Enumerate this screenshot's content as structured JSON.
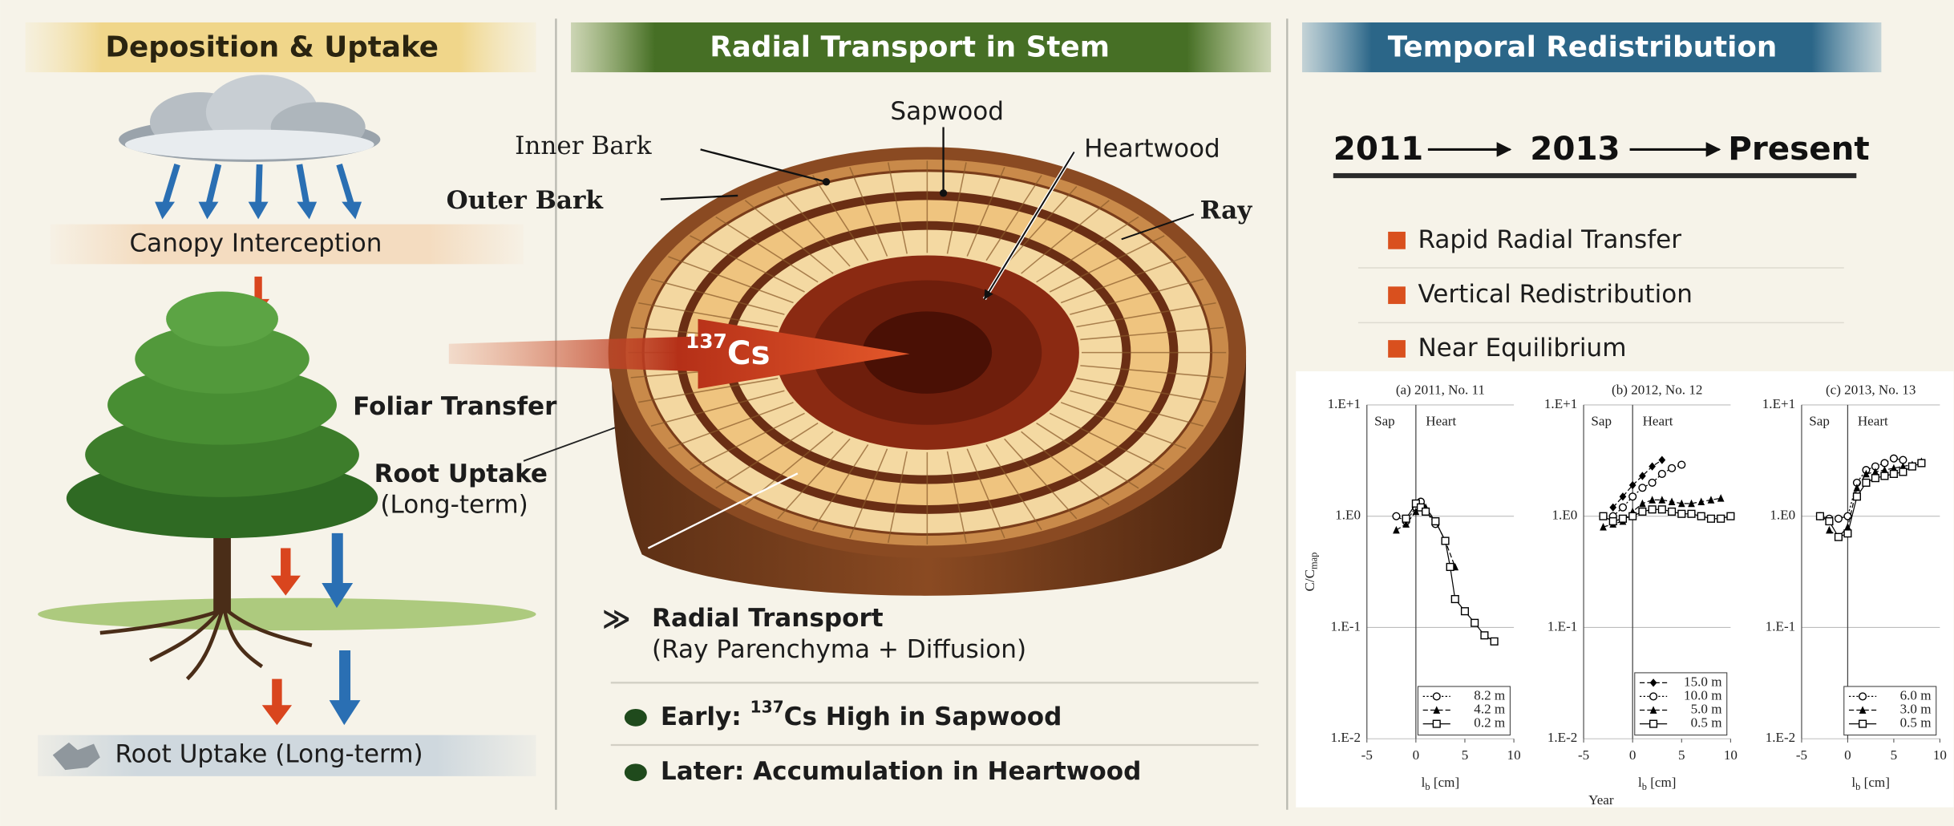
{
  "panels": [
    {
      "title": "Deposition & Uptake",
      "canopy": "Canopy Interception",
      "foliar": "Foliar Transfer",
      "root": "Root Uptake",
      "root_note": "(Long-term)",
      "bottom": "Root Uptake (Long-term)"
    },
    {
      "title": "Radial Transport in Stem",
      "sapwood": "Sapwood",
      "inner_bark": "Inner Bark",
      "outer_bark": "Outer Bark",
      "heartwood": "Heartwood",
      "ray": "Ray",
      "isotope_mass": "137",
      "isotope": "Cs",
      "transport": "Radial Transport",
      "transport_note": "(Ray Parenchyma + Diffusion)",
      "early": [
        "Early: ",
        "137",
        "Cs High in Sapwood"
      ],
      "later": "Later: Accumulation in Heartwood"
    },
    {
      "title": "Temporal Redistribution",
      "timeline": [
        "2011",
        "2013",
        "Present"
      ],
      "stages": [
        "Rapid Radial Transfer",
        "Vertical Redistribution",
        "Near Equilibrium"
      ],
      "axis_note": "Year"
    }
  ],
  "chart_data": [
    {
      "type": "line",
      "title": "(a) 2011, No. 11",
      "x_label": [
        "l",
        "b",
        " [cm]"
      ],
      "y_label": [
        "C/C",
        "map"
      ],
      "regions": [
        "Sap",
        "Heart"
      ],
      "divider_x": 0,
      "xlim": [
        -5,
        10
      ],
      "xticks": [
        -5,
        0,
        5,
        10
      ],
      "ylim": [
        0.01,
        10
      ],
      "log_y": true,
      "yticks": [
        {
          "value": 10,
          "label": "1.E+1"
        },
        {
          "value": 1,
          "label": "1.E0"
        },
        {
          "value": 0.1,
          "label": "1.E-1"
        },
        {
          "value": 0.01,
          "label": "1.E-2"
        }
      ],
      "grid": true,
      "legend": "lower right",
      "series": [
        {
          "name": "8.2 m",
          "color": "#000000",
          "marker": "circle-open",
          "line_style": "dotted",
          "x": [
            -2,
            -1,
            0,
            0.5,
            1,
            2
          ],
          "values": [
            1.0,
            0.9,
            1.2,
            1.35,
            1.1,
            0.85
          ]
        },
        {
          "name": "4.2 m",
          "color": "#000000",
          "marker": "triangle",
          "line_style": "dashed",
          "x": [
            -2,
            -1,
            0,
            1,
            2,
            3,
            4
          ],
          "values": [
            0.75,
            0.85,
            1.1,
            1.2,
            0.9,
            0.6,
            0.35
          ]
        },
        {
          "name": "0.2 m",
          "color": "#000000",
          "marker": "square-open",
          "line_style": "solid",
          "x": [
            -1,
            0,
            0.5,
            1,
            2,
            3,
            3.5,
            4,
            5,
            6,
            7,
            8
          ],
          "values": [
            0.95,
            1.3,
            1.2,
            1.1,
            0.9,
            0.6,
            0.35,
            0.18,
            0.14,
            0.11,
            0.085,
            0.075
          ]
        }
      ]
    },
    {
      "type": "line",
      "title": "(b) 2012, No. 12",
      "x_label": [
        "l",
        "b",
        " [cm]"
      ],
      "regions": [
        "Sap",
        "Heart"
      ],
      "divider_x": 0,
      "xlim": [
        -5,
        10
      ],
      "xticks": [
        -5,
        0,
        5,
        10
      ],
      "ylim": [
        0.01,
        10
      ],
      "log_y": true,
      "yticks": [
        {
          "value": 10,
          "label": "1.E+1"
        },
        {
          "value": 1,
          "label": "1.E0"
        },
        {
          "value": 0.1,
          "label": "1.E-1"
        },
        {
          "value": 0.01,
          "label": "1.E-2"
        }
      ],
      "grid": true,
      "legend": "lower right",
      "series": [
        {
          "name": "15.0 m",
          "color": "#000000",
          "marker": "diamond",
          "line_style": "dashed",
          "x": [
            -2,
            -1,
            0,
            1,
            2,
            3
          ],
          "values": [
            1.2,
            1.5,
            1.9,
            2.3,
            2.8,
            3.2
          ]
        },
        {
          "name": "10.0 m",
          "color": "#000000",
          "marker": "circle-open",
          "line_style": "dotted",
          "x": [
            -2,
            -1,
            0,
            1,
            2,
            3,
            4,
            5
          ],
          "values": [
            1.0,
            1.2,
            1.5,
            1.8,
            2.0,
            2.4,
            2.7,
            2.9
          ]
        },
        {
          "name": "5.0 m",
          "color": "#000000",
          "marker": "triangle",
          "line_style": "dashed",
          "x": [
            -3,
            -2,
            -1,
            0,
            1,
            2,
            3,
            4,
            5,
            6,
            7,
            8,
            9
          ],
          "values": [
            0.8,
            0.85,
            0.9,
            1.1,
            1.3,
            1.4,
            1.4,
            1.35,
            1.3,
            1.3,
            1.35,
            1.4,
            1.45
          ]
        },
        {
          "name": "0.5 m",
          "color": "#000000",
          "marker": "square-open",
          "line_style": "solid",
          "x": [
            -3,
            -2,
            -1,
            0,
            1,
            2,
            3,
            4,
            5,
            6,
            7,
            8,
            9,
            10
          ],
          "values": [
            1.0,
            0.9,
            0.95,
            1.0,
            1.1,
            1.15,
            1.15,
            1.1,
            1.05,
            1.05,
            1.0,
            0.95,
            0.95,
            1.0
          ]
        }
      ]
    },
    {
      "type": "line",
      "title": "(c) 2013, No. 13",
      "x_label": [
        "l",
        "b",
        " [cm]"
      ],
      "regions": [
        "Sap",
        "Heart"
      ],
      "divider_x": 0,
      "xlim": [
        -5,
        10
      ],
      "xticks": [
        -5,
        0,
        5,
        10
      ],
      "ylim": [
        0.01,
        10
      ],
      "log_y": true,
      "yticks": [
        {
          "value": 10,
          "label": "1.E+1"
        },
        {
          "value": 1,
          "label": "1.E0"
        },
        {
          "value": 0.1,
          "label": "1.E-1"
        },
        {
          "value": 0.01,
          "label": "1.E-2"
        }
      ],
      "grid": true,
      "legend": "lower right",
      "series": [
        {
          "name": "6.0 m",
          "color": "#000000",
          "marker": "circle-open",
          "line_style": "dotted",
          "x": [
            -3,
            -2,
            -1,
            0,
            1,
            2,
            3,
            4,
            5,
            6
          ],
          "values": [
            1.0,
            0.95,
            0.95,
            1.0,
            2.0,
            2.6,
            2.8,
            3.0,
            3.3,
            3.2
          ]
        },
        {
          "name": "3.0 m",
          "color": "#000000",
          "marker": "triangle",
          "line_style": "dashed",
          "x": [
            -2,
            -1,
            0,
            1,
            2,
            3,
            4,
            5,
            6,
            7,
            8
          ],
          "values": [
            0.75,
            0.65,
            0.8,
            1.8,
            2.4,
            2.5,
            2.6,
            2.7,
            2.8,
            2.9,
            3.1
          ]
        },
        {
          "name": "0.5 m",
          "color": "#000000",
          "marker": "square-open",
          "line_style": "solid",
          "x": [
            -3,
            -2,
            -1,
            0,
            1,
            2,
            3,
            4,
            5,
            6,
            7,
            8
          ],
          "values": [
            1.0,
            0.9,
            0.65,
            0.7,
            1.5,
            2.0,
            2.2,
            2.3,
            2.4,
            2.5,
            2.8,
            3.0
          ]
        }
      ]
    }
  ]
}
